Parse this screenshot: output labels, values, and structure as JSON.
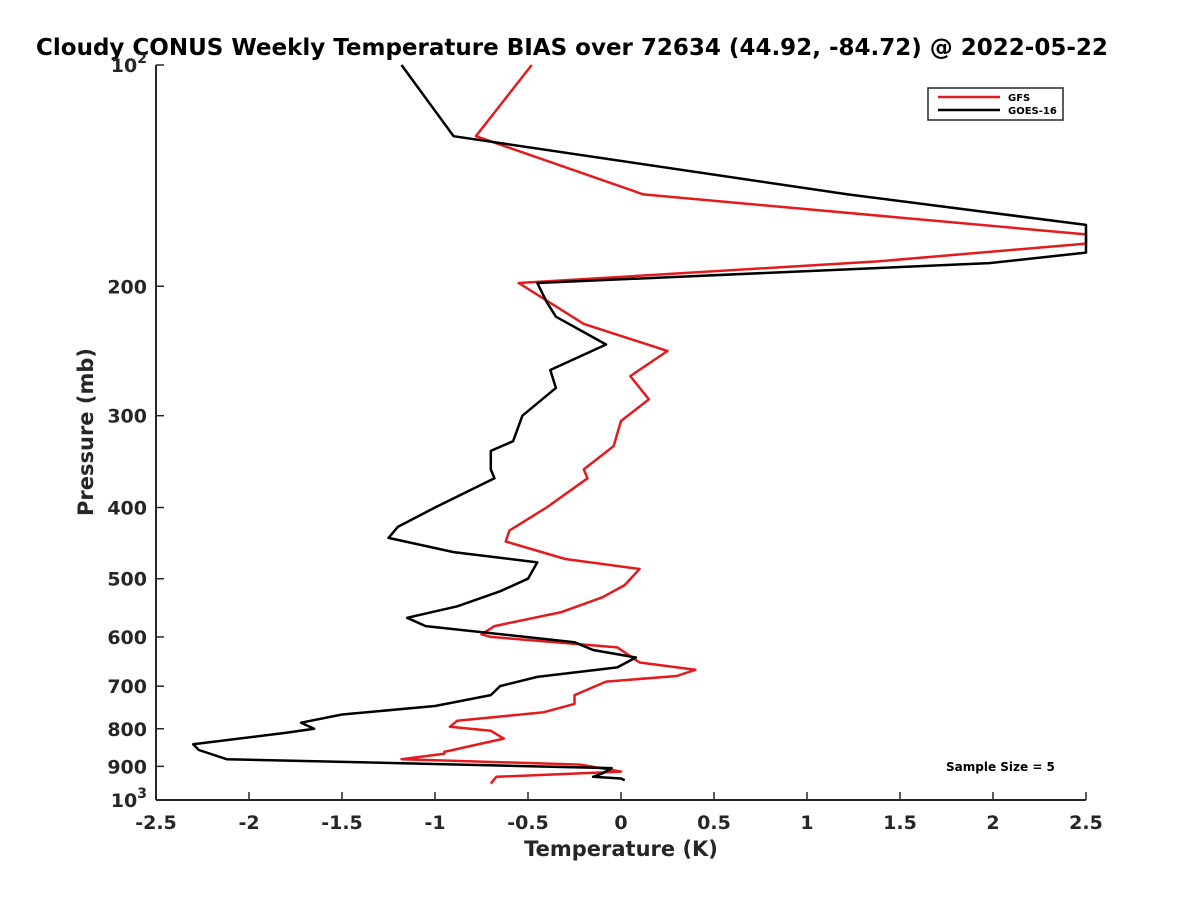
{
  "chart_data": {
    "type": "line",
    "title": "Cloudy CONUS Weekly Temperature BIAS over 72634 (44.92, -84.72) @ 2022-05-22",
    "xlabel": "Temperature (K)",
    "ylabel": "Pressure (mb)",
    "xlim": [
      -2.5,
      2.5
    ],
    "ylim": [
      100,
      1000
    ],
    "y_scale": "log",
    "y_reversed": true,
    "grid": false,
    "legend_position": "top-right",
    "x_ticks": [
      "-2.5",
      "-2",
      "-1.5",
      "-1",
      "-0.5",
      "0",
      "0.5",
      "1",
      "1.5",
      "2",
      "2.5"
    ],
    "y_ticks": [
      {
        "value": 100,
        "label": "10",
        "sup": "2"
      },
      {
        "value": 200,
        "label": "200",
        "sup": ""
      },
      {
        "value": 300,
        "label": "300",
        "sup": ""
      },
      {
        "value": 400,
        "label": "400",
        "sup": ""
      },
      {
        "value": 500,
        "label": "500",
        "sup": ""
      },
      {
        "value": 600,
        "label": "600",
        "sup": ""
      },
      {
        "value": 700,
        "label": "700",
        "sup": ""
      },
      {
        "value": 800,
        "label": "800",
        "sup": ""
      },
      {
        "value": 900,
        "label": "900",
        "sup": ""
      },
      {
        "value": 1000,
        "label": "10",
        "sup": "3"
      }
    ],
    "annotation": "Sample Size = 5",
    "series": [
      {
        "name": "GFS",
        "color": "#e41a1c",
        "points": [
          [
            -0.48,
            100
          ],
          [
            -0.78,
            125
          ],
          [
            0.12,
            150
          ],
          [
            2.5,
            170
          ],
          [
            2.5,
            175
          ],
          [
            1.38,
            185
          ],
          [
            -0.55,
            198
          ],
          [
            -0.2,
            225
          ],
          [
            0.25,
            245
          ],
          [
            0.05,
            265
          ],
          [
            0.15,
            285
          ],
          [
            0.0,
            305
          ],
          [
            -0.04,
            330
          ],
          [
            -0.2,
            355
          ],
          [
            -0.18,
            365
          ],
          [
            -0.4,
            400
          ],
          [
            -0.6,
            430
          ],
          [
            -0.62,
            445
          ],
          [
            -0.3,
            470
          ],
          [
            0.1,
            485
          ],
          [
            0.02,
            510
          ],
          [
            -0.1,
            530
          ],
          [
            -0.32,
            555
          ],
          [
            -0.68,
            580
          ],
          [
            -0.75,
            595
          ],
          [
            -0.7,
            600
          ],
          [
            -0.02,
            620
          ],
          [
            0.1,
            650
          ],
          [
            0.4,
            665
          ],
          [
            0.3,
            678
          ],
          [
            -0.08,
            690
          ],
          [
            -0.25,
            720
          ],
          [
            -0.25,
            740
          ],
          [
            -0.42,
            760
          ],
          [
            -0.88,
            780
          ],
          [
            -0.92,
            795
          ],
          [
            -0.7,
            805
          ],
          [
            -0.63,
            825
          ],
          [
            -0.95,
            860
          ],
          [
            -0.95,
            865
          ],
          [
            -1.18,
            880
          ],
          [
            -0.22,
            895
          ],
          [
            0.0,
            915
          ],
          [
            -0.67,
            930
          ],
          [
            -0.7,
            950
          ]
        ]
      },
      {
        "name": "GOES-16",
        "color": "#000000",
        "points": [
          [
            -1.18,
            100
          ],
          [
            -0.9,
            125
          ],
          [
            1.22,
            150
          ],
          [
            2.5,
            165
          ],
          [
            2.5,
            180
          ],
          [
            1.98,
            186
          ],
          [
            -0.45,
            198
          ],
          [
            -0.4,
            210
          ],
          [
            -0.35,
            220
          ],
          [
            -0.08,
            240
          ],
          [
            -0.38,
            260
          ],
          [
            -0.35,
            275
          ],
          [
            -0.53,
            300
          ],
          [
            -0.58,
            325
          ],
          [
            -0.7,
            335
          ],
          [
            -0.7,
            355
          ],
          [
            -0.68,
            365
          ],
          [
            -1.0,
            400
          ],
          [
            -1.2,
            425
          ],
          [
            -1.25,
            440
          ],
          [
            -0.9,
            460
          ],
          [
            -0.45,
            475
          ],
          [
            -0.5,
            500
          ],
          [
            -0.65,
            520
          ],
          [
            -0.88,
            545
          ],
          [
            -1.15,
            565
          ],
          [
            -1.05,
            580
          ],
          [
            -0.25,
            610
          ],
          [
            -0.15,
            625
          ],
          [
            0.08,
            640
          ],
          [
            -0.02,
            660
          ],
          [
            -0.45,
            680
          ],
          [
            -0.65,
            700
          ],
          [
            -0.7,
            720
          ],
          [
            -1.0,
            745
          ],
          [
            -1.5,
            765
          ],
          [
            -1.72,
            785
          ],
          [
            -1.65,
            800
          ],
          [
            -1.8,
            810
          ],
          [
            -2.3,
            840
          ],
          [
            -2.27,
            855
          ],
          [
            -2.12,
            880
          ],
          [
            -0.05,
            905
          ],
          [
            -0.1,
            920
          ],
          [
            -0.15,
            930
          ],
          [
            0.0,
            935
          ],
          [
            0.02,
            940
          ]
        ]
      }
    ]
  }
}
